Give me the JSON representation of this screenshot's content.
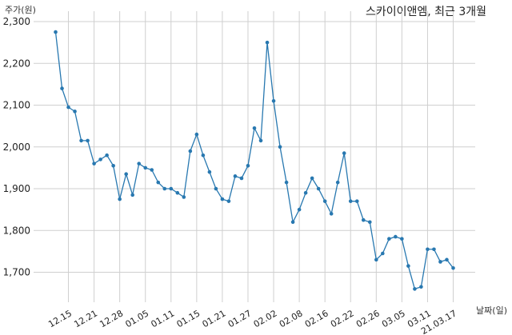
{
  "chart_data": {
    "type": "line",
    "title": "스카이이앤엠, 최근 3개월",
    "ylabel": "주가(원)",
    "xlabel": "날짜(일)",
    "ylim": [
      1640,
      2300
    ],
    "yticks": [
      {
        "value": 1700,
        "label": "1,700"
      },
      {
        "value": 1800,
        "label": "1,800"
      },
      {
        "value": 1900,
        "label": "1,900"
      },
      {
        "value": 2000,
        "label": "2,000"
      },
      {
        "value": 2100,
        "label": "2,100"
      },
      {
        "value": 2200,
        "label": "2,200"
      },
      {
        "value": 2300,
        "label": "2,300"
      }
    ],
    "xticks": [
      {
        "index": 2,
        "label": "12.15"
      },
      {
        "index": 6,
        "label": "12.21"
      },
      {
        "index": 10,
        "label": "12.28"
      },
      {
        "index": 14,
        "label": "01.05"
      },
      {
        "index": 18,
        "label": "01.11"
      },
      {
        "index": 22,
        "label": "01.15"
      },
      {
        "index": 26,
        "label": "01.21"
      },
      {
        "index": 30,
        "label": "01.27"
      },
      {
        "index": 34,
        "label": "02.02"
      },
      {
        "index": 38,
        "label": "02.08"
      },
      {
        "index": 42,
        "label": "02.16"
      },
      {
        "index": 46,
        "label": "02.22"
      },
      {
        "index": 50,
        "label": "02.26"
      },
      {
        "index": 54,
        "label": "03.05"
      },
      {
        "index": 58,
        "label": "03.11"
      },
      {
        "index": 62,
        "label": "21.03.17"
      }
    ],
    "grid": true,
    "series": [
      {
        "color": "#2878b0",
        "values": [
          2275,
          2140,
          2095,
          2085,
          2015,
          2015,
          1960,
          1970,
          1980,
          1955,
          1875,
          1935,
          1885,
          1960,
          1950,
          1945,
          1915,
          1900,
          1900,
          1890,
          1880,
          1990,
          2030,
          1980,
          1940,
          1900,
          1875,
          1870,
          1930,
          1925,
          1955,
          2045,
          2015,
          2250,
          2110,
          2000,
          1915,
          1820,
          1850,
          1890,
          1925,
          1900,
          1870,
          1840,
          1915,
          1985,
          1870,
          1870,
          1825,
          1820,
          1730,
          1745,
          1780,
          1785,
          1780,
          1715,
          1660,
          1665,
          1755,
          1755,
          1725,
          1730,
          1710
        ]
      }
    ]
  }
}
